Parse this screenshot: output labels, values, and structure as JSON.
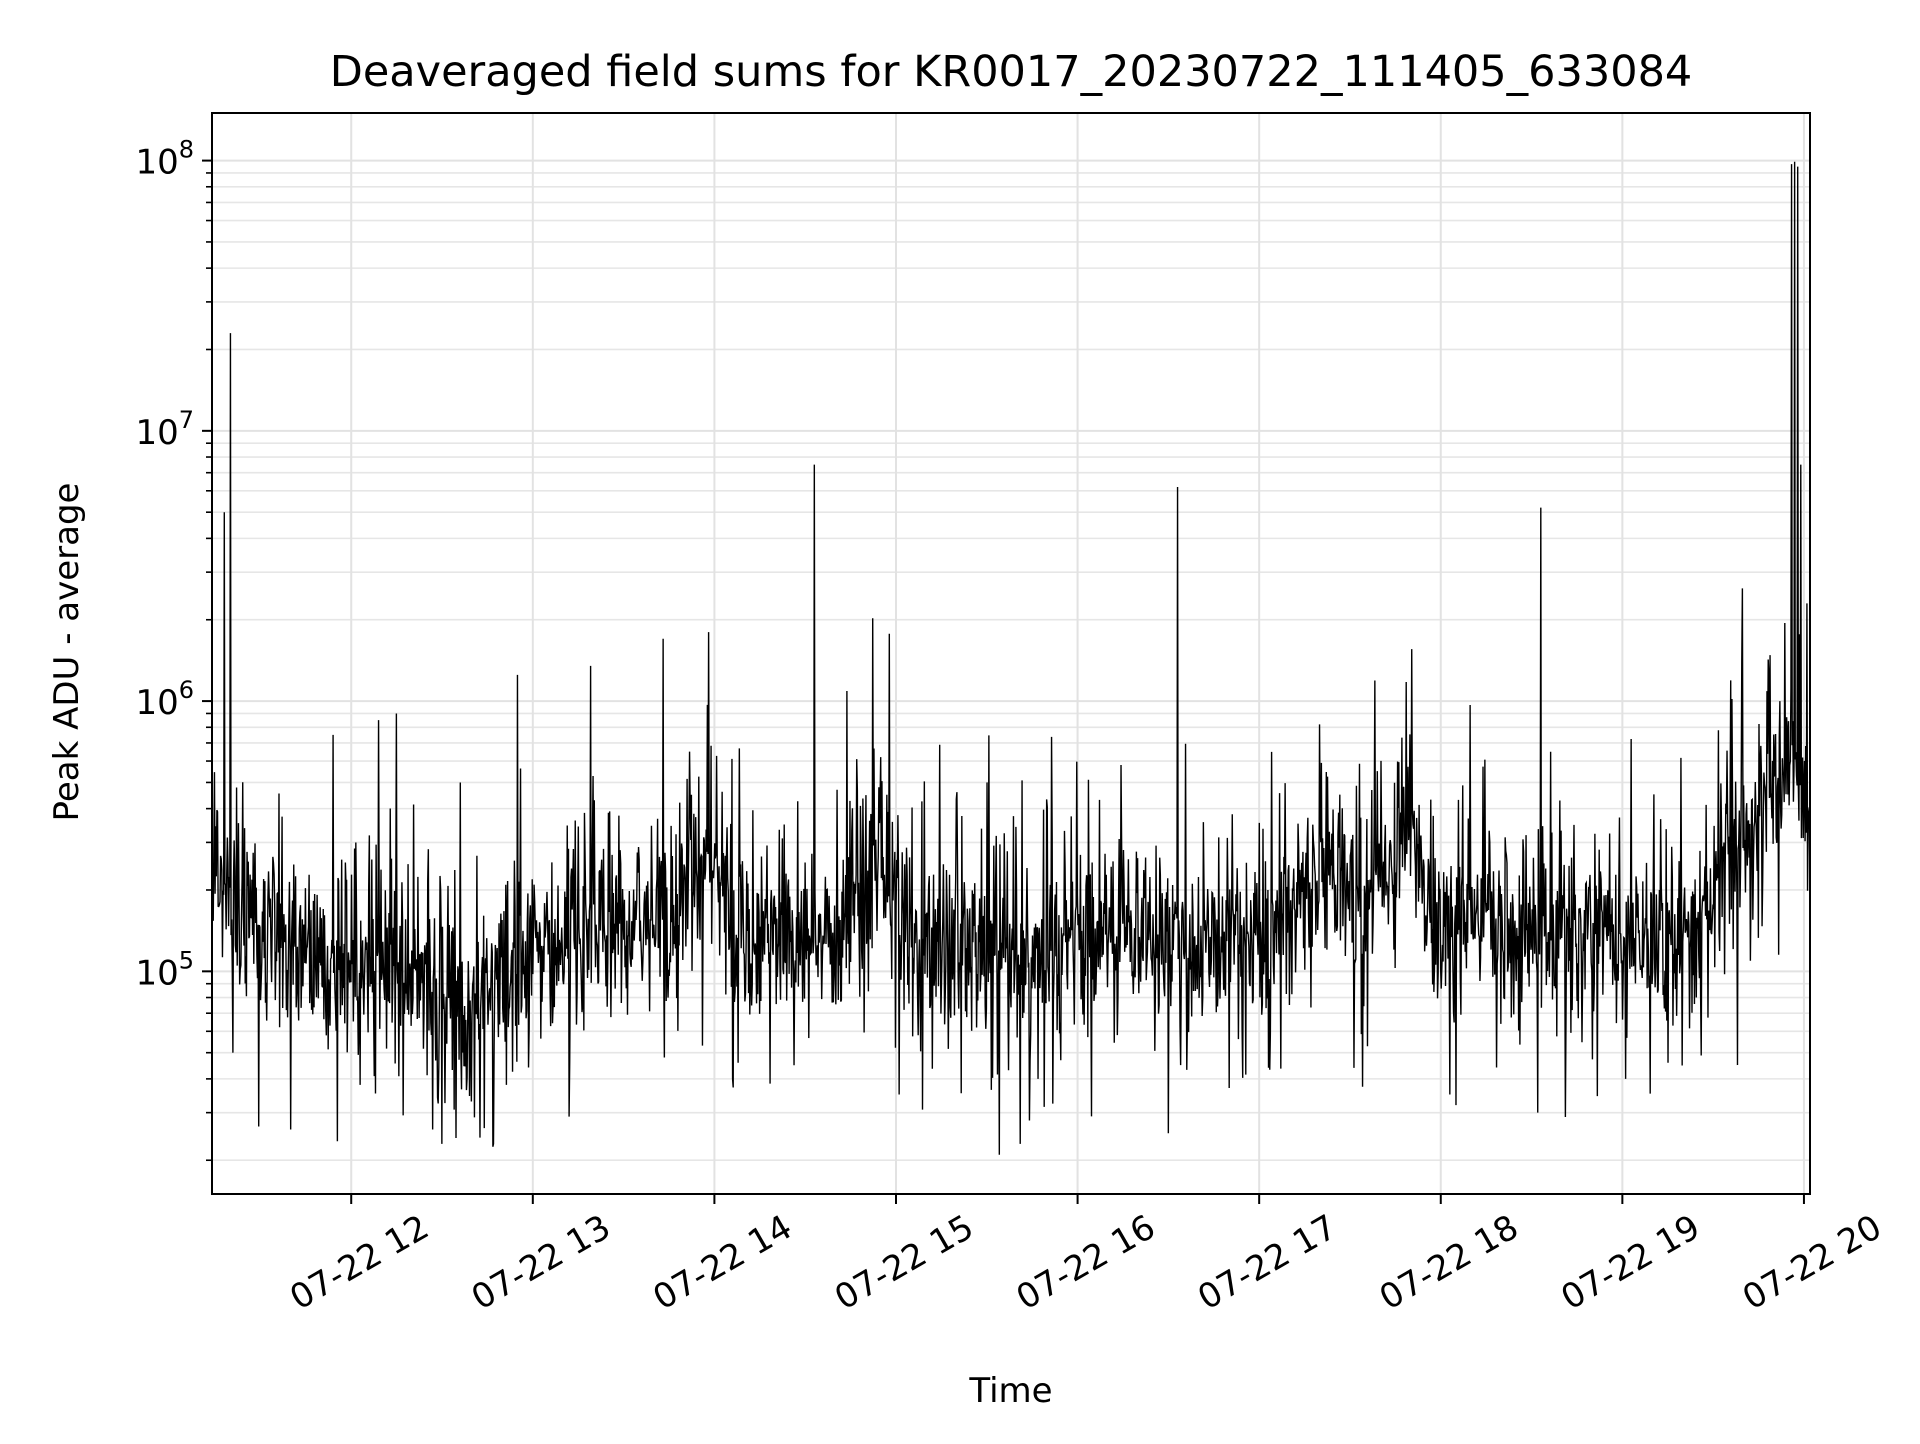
{
  "chart_data": {
    "type": "line",
    "title": "Deaveraged field sums for KR0017_20230722_111405_633084",
    "xlabel": "Time",
    "ylabel": "Peak ADU - average",
    "x_range": [
      "07-22 11:14",
      "07-22 20:02"
    ],
    "y_scale": "log",
    "ylim": [
      15000,
      150000000
    ],
    "grid": "major and minor",
    "x_ticks": [
      "07-22 12",
      "07-22 13",
      "07-22 14",
      "07-22 15",
      "07-22 16",
      "07-22 17",
      "07-22 18",
      "07-22 19",
      "07-22 20"
    ],
    "y_ticks": [
      {
        "base": "10",
        "exp": "5",
        "value": 100000
      },
      {
        "base": "10",
        "exp": "6",
        "value": 1000000
      },
      {
        "base": "10",
        "exp": "7",
        "value": 10000000
      },
      {
        "base": "10",
        "exp": "8",
        "value": 100000000
      }
    ],
    "line_color": "#000000",
    "baseline": [
      {
        "t": "11:14",
        "v": 250000
      },
      {
        "t": "11:25",
        "v": 150000
      },
      {
        "t": "11:45",
        "v": 110000
      },
      {
        "t": "12:15",
        "v": 95000
      },
      {
        "t": "12:40",
        "v": 75000
      },
      {
        "t": "12:55",
        "v": 100000
      },
      {
        "t": "13:20",
        "v": 140000
      },
      {
        "t": "13:50",
        "v": 170000
      },
      {
        "t": "14:00",
        "v": 260000
      },
      {
        "t": "14:10",
        "v": 140000
      },
      {
        "t": "14:40",
        "v": 130000
      },
      {
        "t": "14:55",
        "v": 330000
      },
      {
        "t": "15:05",
        "v": 125000
      },
      {
        "t": "15:45",
        "v": 110000
      },
      {
        "t": "16:15",
        "v": 150000
      },
      {
        "t": "16:45",
        "v": 120000
      },
      {
        "t": "17:10",
        "v": 150000
      },
      {
        "t": "17:20",
        "v": 250000
      },
      {
        "t": "17:35",
        "v": 165000
      },
      {
        "t": "17:50",
        "v": 380000
      },
      {
        "t": "17:55",
        "v": 150000
      },
      {
        "t": "18:30",
        "v": 150000
      },
      {
        "t": "19:00",
        "v": 120000
      },
      {
        "t": "19:25",
        "v": 125000
      },
      {
        "t": "19:35",
        "v": 300000
      },
      {
        "t": "19:45",
        "v": 350000
      },
      {
        "t": "19:55",
        "v": 600000
      },
      {
        "t": "20:02",
        "v": 500000
      }
    ],
    "spikes": [
      {
        "t": "11:18",
        "v": 5000000
      },
      {
        "t": "11:20",
        "v": 23000000
      },
      {
        "t": "11:54",
        "v": 750000
      },
      {
        "t": "12:09",
        "v": 850000
      },
      {
        "t": "12:15",
        "v": 900000
      },
      {
        "t": "12:36",
        "v": 500000
      },
      {
        "t": "12:55",
        "v": 1250000
      },
      {
        "t": "13:19",
        "v": 1350000
      },
      {
        "t": "13:43",
        "v": 1700000
      },
      {
        "t": "13:58",
        "v": 1800000
      },
      {
        "t": "14:33",
        "v": 7500000
      },
      {
        "t": "14:55",
        "v": 620000
      },
      {
        "t": "15:30",
        "v": 500000
      },
      {
        "t": "16:33",
        "v": 6200000
      },
      {
        "t": "17:20",
        "v": 820000
      },
      {
        "t": "18:33",
        "v": 5200000
      },
      {
        "t": "19:52",
        "v": 1000000
      },
      {
        "t": "19:56",
        "v": 97000000
      },
      {
        "t": "19:57",
        "v": 99000000
      },
      {
        "t": "19:58",
        "v": 95000000
      },
      {
        "t": "19:59",
        "v": 7500000
      },
      {
        "t": "20:01",
        "v": 2300000
      }
    ],
    "dips": [
      {
        "t": "11:21",
        "v": 50000
      },
      {
        "t": "11:40",
        "v": 26000
      },
      {
        "t": "12:03",
        "v": 38000
      },
      {
        "t": "12:27",
        "v": 26000
      },
      {
        "t": "12:30",
        "v": 23000
      },
      {
        "t": "12:47",
        "v": 23000
      },
      {
        "t": "13:12",
        "v": 29000
      },
      {
        "t": "14:06",
        "v": 40000
      },
      {
        "t": "15:01",
        "v": 35000
      },
      {
        "t": "15:41",
        "v": 23000
      },
      {
        "t": "15:47",
        "v": 40000
      },
      {
        "t": "16:34",
        "v": 45000
      },
      {
        "t": "17:03",
        "v": 44000
      },
      {
        "t": "18:03",
        "v": 35000
      },
      {
        "t": "18:05",
        "v": 32000
      },
      {
        "t": "18:32",
        "v": 30000
      },
      {
        "t": "19:01",
        "v": 40000
      },
      {
        "t": "19:38",
        "v": 45000
      }
    ]
  }
}
